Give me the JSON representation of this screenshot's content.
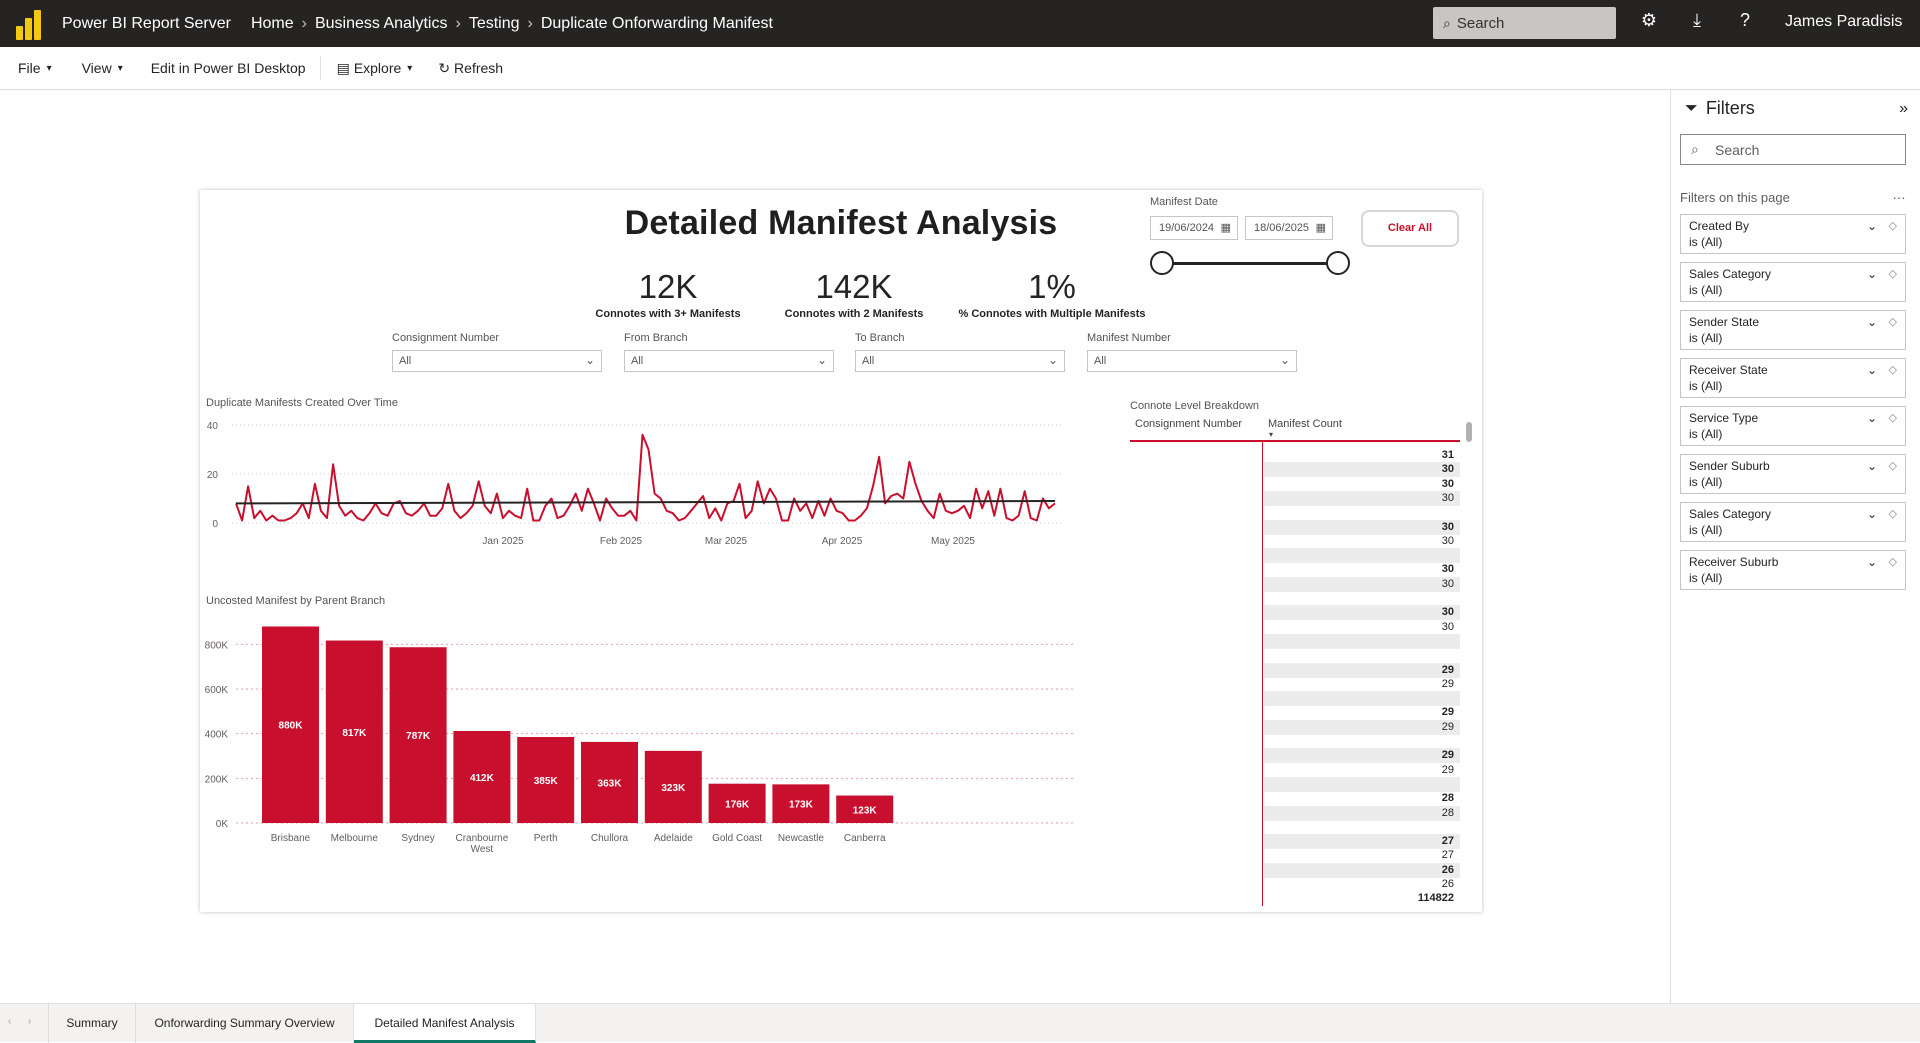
{
  "topbar": {
    "app_title": "Power BI Report Server",
    "breadcrumbs": [
      "Home",
      "Business Analytics",
      "Testing",
      "Duplicate Onforwarding Manifest"
    ],
    "search_placeholder": "Search",
    "user_name": "James Paradisis"
  },
  "toolbar": {
    "file": "File",
    "view": "View",
    "edit": "Edit in Power BI Desktop",
    "explore": "Explore",
    "refresh": "Refresh"
  },
  "report": {
    "title": "Detailed Manifest Analysis",
    "date_label": "Manifest Date",
    "date_from": "19/06/2024",
    "date_to": "18/06/2025",
    "clear_all": "Clear All",
    "kpis": [
      {
        "value": "12K",
        "label": "Connotes with 3+ Manifests"
      },
      {
        "value": "142K",
        "label": "Connotes with 2 Manifests"
      },
      {
        "value": "1%",
        "label": "% Connotes with Multiple Manifests"
      }
    ],
    "slicers": [
      {
        "label": "Consignment Number",
        "value": "All"
      },
      {
        "label": "From Branch",
        "value": "All"
      },
      {
        "label": "To Branch",
        "value": "All"
      },
      {
        "label": "Manifest Number",
        "value": "All"
      }
    ],
    "line_title": "Duplicate Manifests Created Over Time",
    "bar_title": "Uncosted Manifest by Parent Branch",
    "table_title": "Connote Level Breakdown",
    "table_col1": "Consignment Number",
    "table_col2": "Manifest Count",
    "table_total": "114822"
  },
  "chart_data": [
    {
      "type": "line",
      "title": "Duplicate Manifests Created Over Time",
      "x_ticks": [
        "Jan 2025",
        "Feb 2025",
        "Mar 2025",
        "Apr 2025",
        "May 2025"
      ],
      "y_ticks": [
        0,
        20,
        40
      ],
      "ylim": [
        0,
        40
      ],
      "series": [
        {
          "values": [
            8,
            1,
            15,
            2,
            5,
            1,
            3,
            1,
            1,
            2,
            4,
            8,
            2,
            16,
            5,
            2,
            24,
            7,
            3,
            5,
            2,
            1,
            4,
            8,
            4,
            3,
            8,
            9,
            4,
            3,
            5,
            8,
            3,
            3,
            6,
            16,
            5,
            2,
            4,
            7,
            17,
            7,
            4,
            12,
            2,
            5,
            3,
            2,
            14,
            1,
            1,
            7,
            10,
            2,
            3,
            7,
            12,
            5,
            14,
            8,
            1,
            10,
            6,
            3,
            3,
            5,
            1,
            36,
            30,
            12,
            10,
            5,
            4,
            1,
            2,
            5,
            8,
            11,
            2,
            6,
            1,
            8,
            9,
            16,
            2,
            5,
            17,
            8,
            14,
            10,
            1,
            1,
            10,
            5,
            8,
            2,
            9,
            3,
            10,
            5,
            4,
            1,
            1,
            3,
            6,
            15,
            27,
            8,
            11,
            12,
            10,
            25,
            16,
            9,
            5,
            2,
            12,
            5,
            4,
            5,
            7,
            2,
            14,
            6,
            13,
            3,
            14,
            2,
            1,
            3,
            13,
            2,
            1,
            10,
            6,
            8
          ]
        },
        {
          "values": [
            8,
            9
          ]
        }
      ]
    },
    {
      "type": "bar",
      "title": "Uncosted Manifest by Parent Branch",
      "categories": [
        "Brisbane",
        "Melbourne",
        "Sydney",
        "Cranbourne West",
        "Perth",
        "Chullora",
        "Adelaide",
        "Gold Coast",
        "Newcastle",
        "Canberra"
      ],
      "values": [
        880000,
        817000,
        787000,
        412000,
        385000,
        363000,
        323000,
        176000,
        173000,
        123000
      ],
      "labels": [
        "880K",
        "817K",
        "787K",
        "412K",
        "385K",
        "363K",
        "323K",
        "176K",
        "173K",
        "123K"
      ],
      "y_ticks": [
        "0K",
        "200K",
        "400K",
        "600K",
        "800K"
      ],
      "ylim": [
        0,
        900000
      ],
      "color": "#c8102e"
    },
    {
      "type": "table",
      "title": "Connote Level Breakdown",
      "columns": [
        "Consignment Number",
        "Manifest Count"
      ],
      "rows": [
        {
          "v": "31",
          "b": true
        },
        {
          "v": "30",
          "b": true
        },
        {
          "v": "30",
          "b": true
        },
        {
          "v": "30",
          "b": false
        },
        {
          "v": "",
          "b": false
        },
        {
          "v": "30",
          "b": true
        },
        {
          "v": "30",
          "b": false
        },
        {
          "v": "",
          "b": false
        },
        {
          "v": "30",
          "b": true
        },
        {
          "v": "30",
          "b": false
        },
        {
          "v": "",
          "b": false
        },
        {
          "v": "30",
          "b": true
        },
        {
          "v": "30",
          "b": false
        },
        {
          "v": "",
          "b": false
        },
        {
          "v": "",
          "b": false
        },
        {
          "v": "29",
          "b": true
        },
        {
          "v": "29",
          "b": false
        },
        {
          "v": "",
          "b": false
        },
        {
          "v": "29",
          "b": true
        },
        {
          "v": "29",
          "b": false
        },
        {
          "v": "",
          "b": false
        },
        {
          "v": "29",
          "b": true
        },
        {
          "v": "29",
          "b": false
        },
        {
          "v": "",
          "b": false
        },
        {
          "v": "28",
          "b": true
        },
        {
          "v": "28",
          "b": false
        },
        {
          "v": "",
          "b": false
        },
        {
          "v": "27",
          "b": true
        },
        {
          "v": "27",
          "b": false
        },
        {
          "v": "26",
          "b": true
        },
        {
          "v": "26",
          "b": false
        }
      ],
      "total": "114822"
    }
  ],
  "filters": {
    "title": "Filters",
    "search_placeholder": "Search",
    "on_page_label": "Filters on this page",
    "cards": [
      {
        "name": "Created By",
        "value": "is (All)"
      },
      {
        "name": "Sales Category",
        "value": "is (All)"
      },
      {
        "name": "Sender State",
        "value": "is (All)"
      },
      {
        "name": "Receiver State",
        "value": "is (All)"
      },
      {
        "name": "Service Type",
        "value": "is (All)"
      },
      {
        "name": "Sender Suburb",
        "value": "is (All)"
      },
      {
        "name": "Sales Category",
        "value": "is (All)"
      },
      {
        "name": "Receiver Suburb",
        "value": "is (All)"
      }
    ]
  },
  "tabs": [
    "Summary",
    "Onforwarding Summary Overview",
    "Detailed Manifest Analysis"
  ],
  "active_tab": 2,
  "colors": {
    "accent": "#c8102e",
    "tab_active": "#117865",
    "topbar": "#252423"
  }
}
